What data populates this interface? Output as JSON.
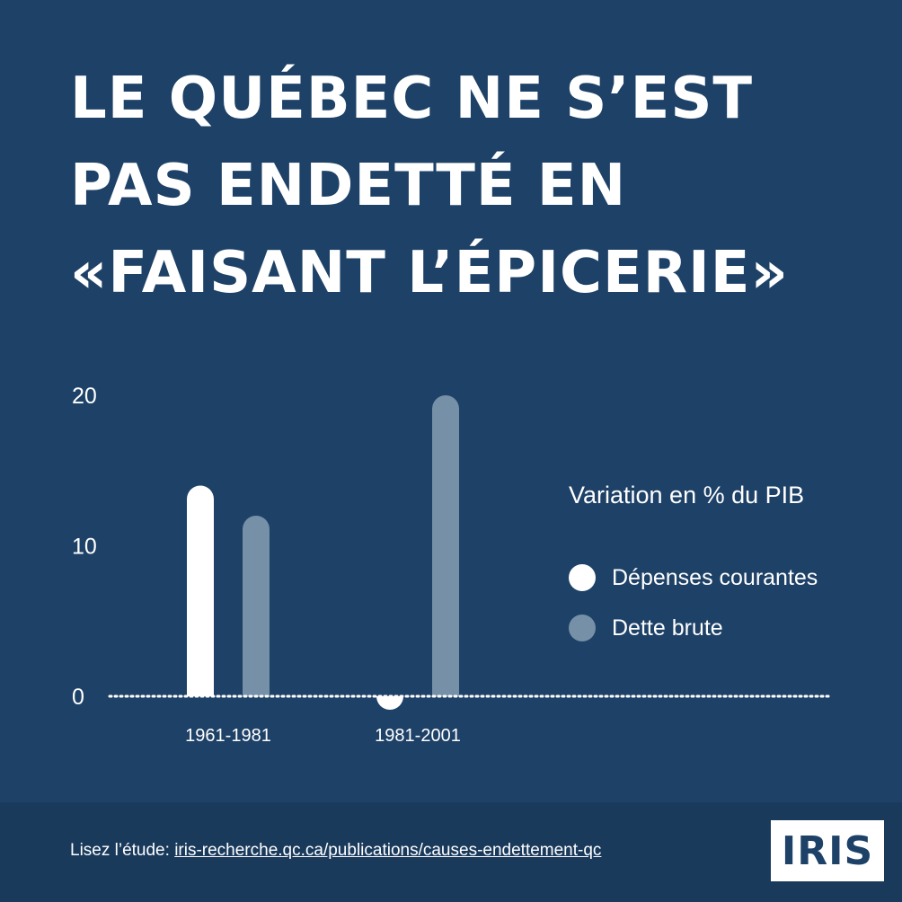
{
  "title_lines": [
    "LE QUÉBEC NE S’EST",
    "PAS ENDETTÉ EN",
    "«FAISANT L’ÉPICERIE»"
  ],
  "chart_data": {
    "type": "bar",
    "categories": [
      "1961-1981",
      "1981-2001"
    ],
    "series": [
      {
        "name": "Dépenses courantes",
        "values": [
          14,
          -1
        ],
        "color": "#ffffff"
      },
      {
        "name": "Dette brute",
        "values": [
          12,
          20
        ],
        "color": "#7590a7"
      }
    ],
    "title": "",
    "xlabel": "",
    "ylabel": "",
    "ylim": [
      0,
      20
    ],
    "yticks": [
      "20",
      "10",
      "0"
    ],
    "legend_title": "Variation en % du PIB",
    "legend_position": "right",
    "grid": false,
    "baseline_style": "dotted"
  },
  "footer": {
    "prefix": "Lisez l’étude: ",
    "link": "iris-recherche.qc.ca/publications/causes-endettement-qc"
  },
  "logo": "IRIS",
  "colors": {
    "background": "#1e4167",
    "footer_background": "#1a3a5c",
    "primary": "#ffffff",
    "secondary": "#7590a7"
  }
}
